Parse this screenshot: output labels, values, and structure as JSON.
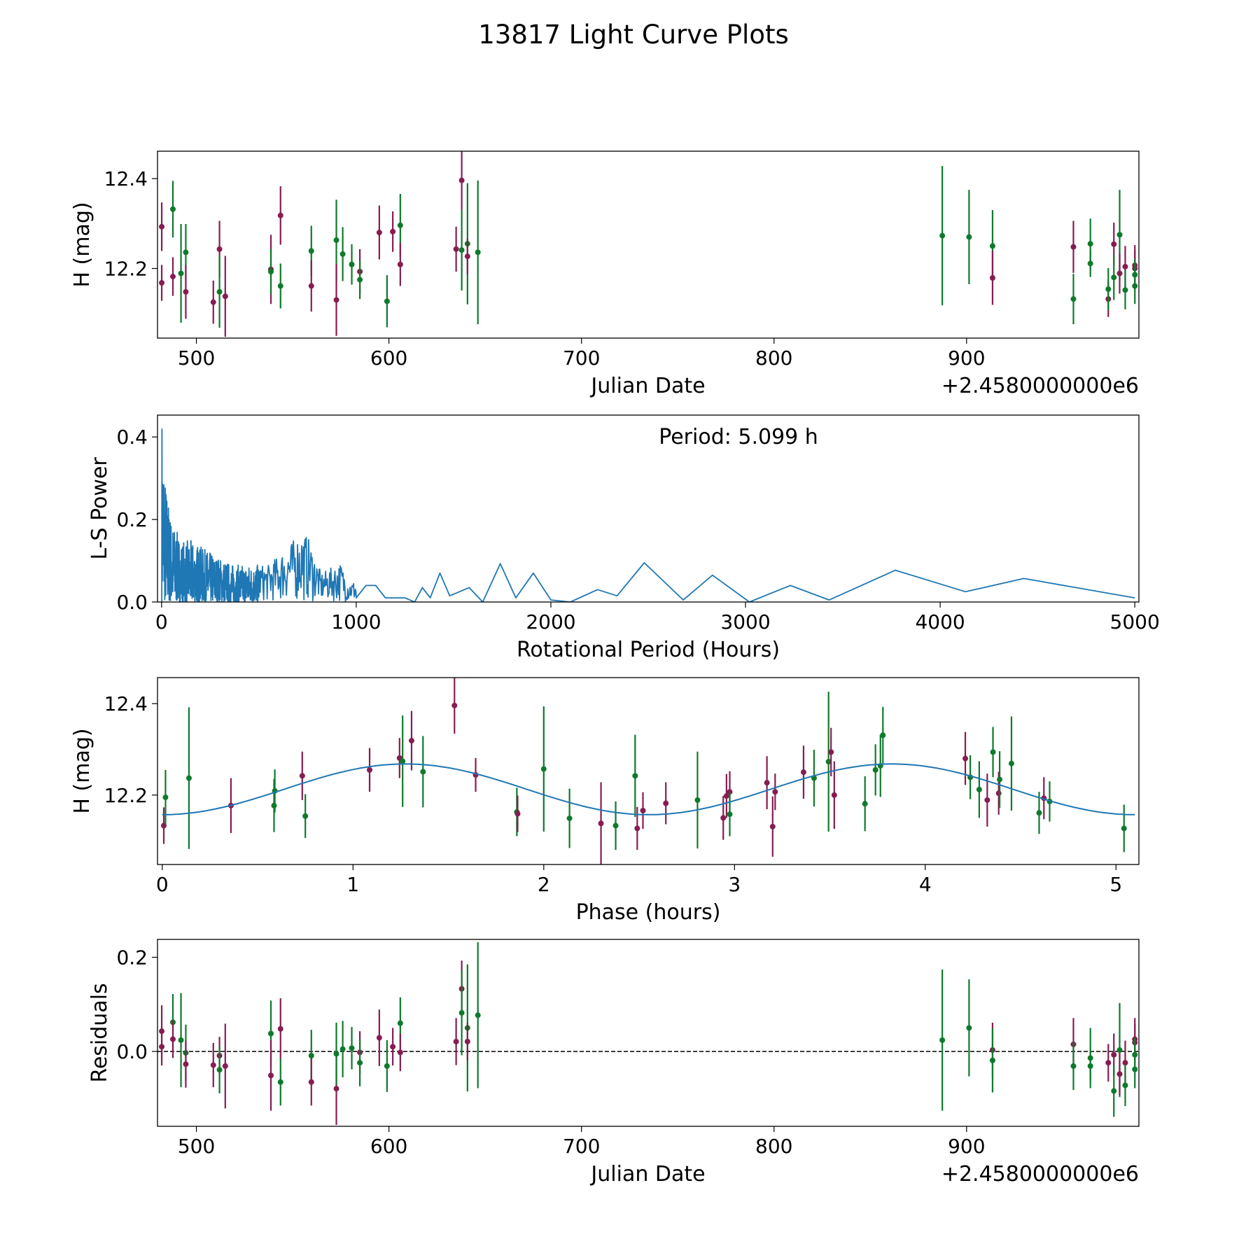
{
  "title": "13817 Light Curve Plots",
  "colors": {
    "maroon": "#861d51",
    "green": "#0e7a2c",
    "line": "#1f77b4"
  },
  "chart_data": [
    {
      "type": "scatter",
      "id": "lightcurve",
      "xlabel": "Julian Date",
      "ylabel": "H (mag)",
      "offset_text": "+2.4580000000e6",
      "xlim": [
        479.8,
        989.5
      ],
      "ylim": [
        12.045,
        12.461
      ],
      "xticks": [
        500,
        600,
        700,
        800,
        900
      ],
      "xtick_labels": [
        "500",
        "600",
        "700",
        "800",
        "900"
      ],
      "yticks": [
        12.2,
        12.4
      ],
      "ytick_labels": [
        "12.2",
        "12.4"
      ],
      "points": [
        [
          482,
          12.293,
          0.054,
          "m"
        ],
        [
          482,
          12.168,
          0.04,
          "m"
        ],
        [
          487.8,
          12.332,
          0.063,
          "g"
        ],
        [
          487.8,
          12.182,
          0.043,
          "m"
        ],
        [
          492,
          12.189,
          0.11,
          "g"
        ],
        [
          494.5,
          12.236,
          0.063,
          "g"
        ],
        [
          494.5,
          12.148,
          0.06,
          "m"
        ],
        [
          508.8,
          12.125,
          0.048,
          "m"
        ],
        [
          512,
          12.243,
          0.063,
          "m"
        ],
        [
          512,
          12.148,
          0.08,
          "g"
        ],
        [
          515,
          12.138,
          0.09,
          "m"
        ],
        [
          538.7,
          12.198,
          0.077,
          "m"
        ],
        [
          538.7,
          12.193,
          0.05,
          "g"
        ],
        [
          543.7,
          12.318,
          0.065,
          "m"
        ],
        [
          543.7,
          12.161,
          0.05,
          "g"
        ],
        [
          559.7,
          12.239,
          0.056,
          "g"
        ],
        [
          559.7,
          12.161,
          0.057,
          "m"
        ],
        [
          572.7,
          12.263,
          0.09,
          "g"
        ],
        [
          572.7,
          12.13,
          0.08,
          "m"
        ],
        [
          576,
          12.232,
          0.06,
          "g"
        ],
        [
          580.7,
          12.209,
          0.045,
          "g"
        ],
        [
          584.9,
          12.193,
          0.05,
          "m"
        ],
        [
          584.9,
          12.175,
          0.043,
          "g"
        ],
        [
          595,
          12.28,
          0.06,
          "m"
        ],
        [
          599,
          12.127,
          0.058,
          "g"
        ],
        [
          602,
          12.282,
          0.045,
          "m"
        ],
        [
          605.9,
          12.296,
          0.07,
          "g"
        ],
        [
          605.9,
          12.209,
          0.048,
          "m"
        ],
        [
          634.9,
          12.243,
          0.05,
          "m"
        ],
        [
          637.8,
          12.396,
          0.065,
          "m"
        ],
        [
          637.8,
          12.241,
          0.09,
          "g"
        ],
        [
          640.8,
          12.255,
          0.135,
          "g"
        ],
        [
          640.8,
          12.227,
          0.04,
          "m"
        ],
        [
          646.2,
          12.236,
          0.16,
          "g"
        ],
        [
          887.4,
          12.273,
          0.155,
          "g"
        ],
        [
          901.3,
          12.27,
          0.105,
          "g"
        ],
        [
          913.5,
          12.25,
          0.08,
          "g"
        ],
        [
          913.5,
          12.179,
          0.06,
          "m"
        ],
        [
          955.5,
          12.248,
          0.058,
          "m"
        ],
        [
          955.5,
          12.132,
          0.056,
          "g"
        ],
        [
          964.3,
          12.255,
          0.056,
          "g"
        ],
        [
          964.3,
          12.211,
          0.03,
          "g"
        ],
        [
          973.6,
          12.132,
          0.04,
          "m"
        ],
        [
          973.6,
          12.154,
          0.047,
          "g"
        ],
        [
          976.5,
          12.254,
          0.048,
          "m"
        ],
        [
          976.5,
          12.18,
          0.05,
          "g"
        ],
        [
          979.5,
          12.275,
          0.1,
          "g"
        ],
        [
          979.5,
          12.189,
          0.045,
          "m"
        ],
        [
          982.4,
          12.204,
          0.046,
          "m"
        ],
        [
          982.4,
          12.152,
          0.043,
          "g"
        ],
        [
          987.4,
          12.207,
          0.045,
          "m"
        ],
        [
          987.4,
          12.2,
          0.04,
          "m"
        ],
        [
          987.4,
          12.186,
          0.035,
          "g"
        ],
        [
          987.4,
          12.161,
          0.04,
          "g"
        ]
      ]
    },
    {
      "type": "line",
      "id": "periodogram",
      "xlabel": "Rotational Period (Hours)",
      "ylabel": "L-S Power",
      "annotation": "Period: 5.099 h",
      "xlim": [
        -21,
        5021
      ],
      "ylim": [
        0,
        0.453
      ],
      "xticks": [
        0,
        1000,
        2000,
        3000,
        4000,
        5000
      ],
      "xtick_labels": [
        "0",
        "1000",
        "2000",
        "3000",
        "4000",
        "5000"
      ],
      "yticks": [
        0,
        0.2,
        0.4
      ],
      "ytick_labels": [
        "0.0",
        "0.2",
        "0.4"
      ],
      "noisy_peaks": [
        [
          3,
          0.46
        ],
        [
          20,
          0.3
        ],
        [
          50,
          0.2
        ],
        [
          100,
          0.15
        ],
        [
          150,
          0.15
        ],
        [
          250,
          0.12
        ],
        [
          370,
          0.09
        ],
        [
          550,
          0.09
        ],
        [
          720,
          0.17
        ],
        [
          750,
          0.16
        ],
        [
          820,
          0.07
        ],
        [
          920,
          0.095
        ],
        [
          960,
          0.05
        ]
      ],
      "smooth_points": [
        [
          1000,
          0.01
        ],
        [
          1050,
          0.04
        ],
        [
          1100,
          0.04
        ],
        [
          1150,
          0.01
        ],
        [
          1250,
          0.01
        ],
        [
          1300,
          0.0
        ],
        [
          1340,
          0.035
        ],
        [
          1380,
          0.01
        ],
        [
          1430,
          0.07
        ],
        [
          1480,
          0.015
        ],
        [
          1580,
          0.035
        ],
        [
          1650,
          0.0
        ],
        [
          1740,
          0.093
        ],
        [
          1820,
          0.01
        ],
        [
          1910,
          0.07
        ],
        [
          2000,
          0.005
        ],
        [
          2100,
          0.0
        ],
        [
          2240,
          0.03
        ],
        [
          2340,
          0.015
        ],
        [
          2480,
          0.095
        ],
        [
          2680,
          0.005
        ],
        [
          2830,
          0.065
        ],
        [
          3020,
          0.0
        ],
        [
          3230,
          0.04
        ],
        [
          3430,
          0.005
        ],
        [
          3770,
          0.077
        ],
        [
          4130,
          0.025
        ],
        [
          4430,
          0.057
        ],
        [
          5000,
          0.01
        ]
      ]
    },
    {
      "type": "scatter",
      "id": "phased",
      "xlabel": "Phase (hours)",
      "ylabel": "H (mag)",
      "xlim": [
        -0.025,
        5.12
      ],
      "ylim": [
        12.048,
        12.457
      ],
      "xticks": [
        0,
        1,
        2,
        3,
        4,
        5
      ],
      "xtick_labels": [
        "0",
        "1",
        "2",
        "3",
        "4",
        "5"
      ],
      "yticks": [
        12.2,
        12.4
      ],
      "ytick_labels": [
        "12.2",
        "12.4"
      ],
      "model": {
        "period_hours": 5.099,
        "mean": 12.2125,
        "amplitude": 0.0555,
        "harmonic": 2
      },
      "points": [
        [
          0.008,
          12.133,
          0.04,
          "m"
        ],
        [
          0.017,
          12.195,
          0.06,
          "g"
        ],
        [
          0.14,
          12.237,
          0.155,
          "g"
        ],
        [
          0.36,
          12.177,
          0.06,
          "m"
        ],
        [
          0.586,
          12.177,
          0.058,
          "g"
        ],
        [
          0.59,
          12.209,
          0.047,
          "g"
        ],
        [
          0.734,
          12.242,
          0.053,
          "m"
        ],
        [
          0.75,
          12.154,
          0.048,
          "g"
        ],
        [
          1.087,
          12.255,
          0.048,
          "m"
        ],
        [
          1.244,
          12.281,
          0.044,
          "m"
        ],
        [
          1.26,
          12.274,
          0.1,
          "g"
        ],
        [
          1.307,
          12.319,
          0.065,
          "m"
        ],
        [
          1.367,
          12.251,
          0.078,
          "g"
        ],
        [
          1.532,
          12.396,
          0.062,
          "m"
        ],
        [
          1.643,
          12.244,
          0.037,
          "m"
        ],
        [
          1.859,
          12.163,
          0.053,
          "g"
        ],
        [
          1.863,
          12.159,
          0.04,
          "m"
        ],
        [
          2.0,
          12.257,
          0.137,
          "g"
        ],
        [
          2.135,
          12.149,
          0.065,
          "g"
        ],
        [
          2.3,
          12.138,
          0.09,
          "m"
        ],
        [
          2.377,
          12.133,
          0.053,
          "g"
        ],
        [
          2.479,
          12.242,
          0.09,
          "g"
        ],
        [
          2.49,
          12.127,
          0.047,
          "m"
        ],
        [
          2.52,
          12.166,
          0.04,
          "m"
        ],
        [
          2.64,
          12.182,
          0.046,
          "m"
        ],
        [
          2.806,
          12.189,
          0.106,
          "g"
        ],
        [
          2.941,
          12.15,
          0.048,
          "m"
        ],
        [
          2.958,
          12.198,
          0.048,
          "m"
        ],
        [
          2.975,
          12.207,
          0.045,
          "m"
        ],
        [
          2.975,
          12.158,
          0.048,
          "g"
        ],
        [
          3.17,
          12.227,
          0.058,
          "m"
        ],
        [
          3.2,
          12.131,
          0.066,
          "m"
        ],
        [
          3.213,
          12.207,
          0.04,
          "m"
        ],
        [
          3.362,
          12.25,
          0.058,
          "m"
        ],
        [
          3.417,
          12.237,
          0.062,
          "g"
        ],
        [
          3.493,
          12.273,
          0.153,
          "g"
        ],
        [
          3.506,
          12.294,
          0.053,
          "m"
        ],
        [
          3.523,
          12.2,
          0.074,
          "m"
        ],
        [
          3.684,
          12.181,
          0.06,
          "g"
        ],
        [
          3.739,
          12.255,
          0.056,
          "g"
        ],
        [
          3.765,
          12.264,
          0.068,
          "g"
        ],
        [
          3.778,
          12.331,
          0.062,
          "g"
        ],
        [
          4.21,
          12.28,
          0.058,
          "m"
        ],
        [
          4.236,
          12.239,
          0.048,
          "g"
        ],
        [
          4.283,
          12.212,
          0.062,
          "g"
        ],
        [
          4.325,
          12.189,
          0.058,
          "m"
        ],
        [
          4.355,
          12.294,
          0.055,
          "g"
        ],
        [
          4.385,
          12.204,
          0.047,
          "m"
        ],
        [
          4.39,
          12.234,
          0.062,
          "g"
        ],
        [
          4.452,
          12.269,
          0.103,
          "g"
        ],
        [
          4.597,
          12.161,
          0.046,
          "g"
        ],
        [
          4.622,
          12.193,
          0.046,
          "m"
        ],
        [
          4.652,
          12.186,
          0.044,
          "g"
        ],
        [
          5.042,
          12.127,
          0.052,
          "g"
        ]
      ]
    },
    {
      "type": "scatter",
      "id": "residuals",
      "xlabel": "Julian Date",
      "ylabel": "Residuals",
      "offset_text": "+2.4580000000e6",
      "xlim": [
        479.8,
        989.5
      ],
      "ylim": [
        -0.159,
        0.238
      ],
      "hline": 0,
      "xticks": [
        500,
        600,
        700,
        800,
        900
      ],
      "xtick_labels": [
        "500",
        "600",
        "700",
        "800",
        "900"
      ],
      "yticks": [
        0,
        0.2
      ],
      "ytick_labels": [
        "0.0",
        "0.2"
      ],
      "points": [
        [
          482,
          0.043,
          0.055,
          "m"
        ],
        [
          482,
          0.01,
          0.04,
          "m"
        ],
        [
          487.8,
          0.062,
          0.06,
          "g"
        ],
        [
          487.8,
          0.026,
          0.04,
          "m"
        ],
        [
          492,
          0.024,
          0.1,
          "g"
        ],
        [
          494.5,
          -0.003,
          0.06,
          "g"
        ],
        [
          494.5,
          -0.027,
          0.05,
          "m"
        ],
        [
          508.8,
          -0.029,
          0.047,
          "m"
        ],
        [
          512,
          -0.009,
          0.04,
          "m"
        ],
        [
          512,
          -0.039,
          0.05,
          "g"
        ],
        [
          515,
          -0.031,
          0.09,
          "m"
        ],
        [
          538.7,
          0.038,
          0.07,
          "g"
        ],
        [
          538.7,
          -0.051,
          0.075,
          "m"
        ],
        [
          543.7,
          0.048,
          0.065,
          "m"
        ],
        [
          543.7,
          -0.065,
          0.05,
          "g"
        ],
        [
          559.7,
          -0.009,
          0.055,
          "g"
        ],
        [
          559.7,
          -0.065,
          0.05,
          "m"
        ],
        [
          572.7,
          -0.079,
          0.077,
          "m"
        ],
        [
          572.7,
          -0.005,
          0.066,
          "g"
        ],
        [
          576,
          0.005,
          0.06,
          "g"
        ],
        [
          580.7,
          0.007,
          0.045,
          "g"
        ],
        [
          584.9,
          -0.002,
          0.045,
          "m"
        ],
        [
          584.9,
          -0.024,
          0.05,
          "g"
        ],
        [
          595,
          0.029,
          0.06,
          "m"
        ],
        [
          599,
          -0.031,
          0.055,
          "g"
        ],
        [
          602,
          0.01,
          0.04,
          "m"
        ],
        [
          605.9,
          0.06,
          0.055,
          "g"
        ],
        [
          605.9,
          -0.002,
          0.04,
          "m"
        ],
        [
          634.9,
          0.021,
          0.05,
          "m"
        ],
        [
          637.8,
          0.133,
          0.06,
          "m"
        ],
        [
          637.8,
          0.082,
          0.09,
          "g"
        ],
        [
          640.8,
          0.05,
          0.135,
          "g"
        ],
        [
          640.8,
          0.021,
          0.04,
          "m"
        ],
        [
          646.2,
          0.077,
          0.155,
          "g"
        ],
        [
          887.4,
          0.024,
          0.15,
          "g"
        ],
        [
          901.3,
          0.05,
          0.103,
          "g"
        ],
        [
          913.5,
          0.003,
          0.058,
          "m"
        ],
        [
          913.5,
          -0.019,
          0.068,
          "g"
        ],
        [
          955.5,
          0.015,
          0.056,
          "m"
        ],
        [
          955.5,
          -0.031,
          0.051,
          "g"
        ],
        [
          964.3,
          -0.014,
          0.064,
          "g"
        ],
        [
          964.3,
          -0.031,
          0.03,
          "g"
        ],
        [
          973.6,
          -0.024,
          0.04,
          "m"
        ],
        [
          976.5,
          -0.007,
          0.045,
          "m"
        ],
        [
          976.5,
          -0.084,
          0.055,
          "g"
        ],
        [
          979.5,
          0.003,
          0.1,
          "g"
        ],
        [
          979.5,
          -0.048,
          0.045,
          "m"
        ],
        [
          982.4,
          -0.024,
          0.047,
          "m"
        ],
        [
          982.4,
          -0.072,
          0.044,
          "g"
        ],
        [
          987.4,
          0.026,
          0.045,
          "m"
        ],
        [
          987.4,
          0.019,
          0.04,
          "m"
        ],
        [
          987.4,
          -0.007,
          0.035,
          "g"
        ],
        [
          987.4,
          -0.038,
          0.04,
          "g"
        ]
      ]
    }
  ]
}
